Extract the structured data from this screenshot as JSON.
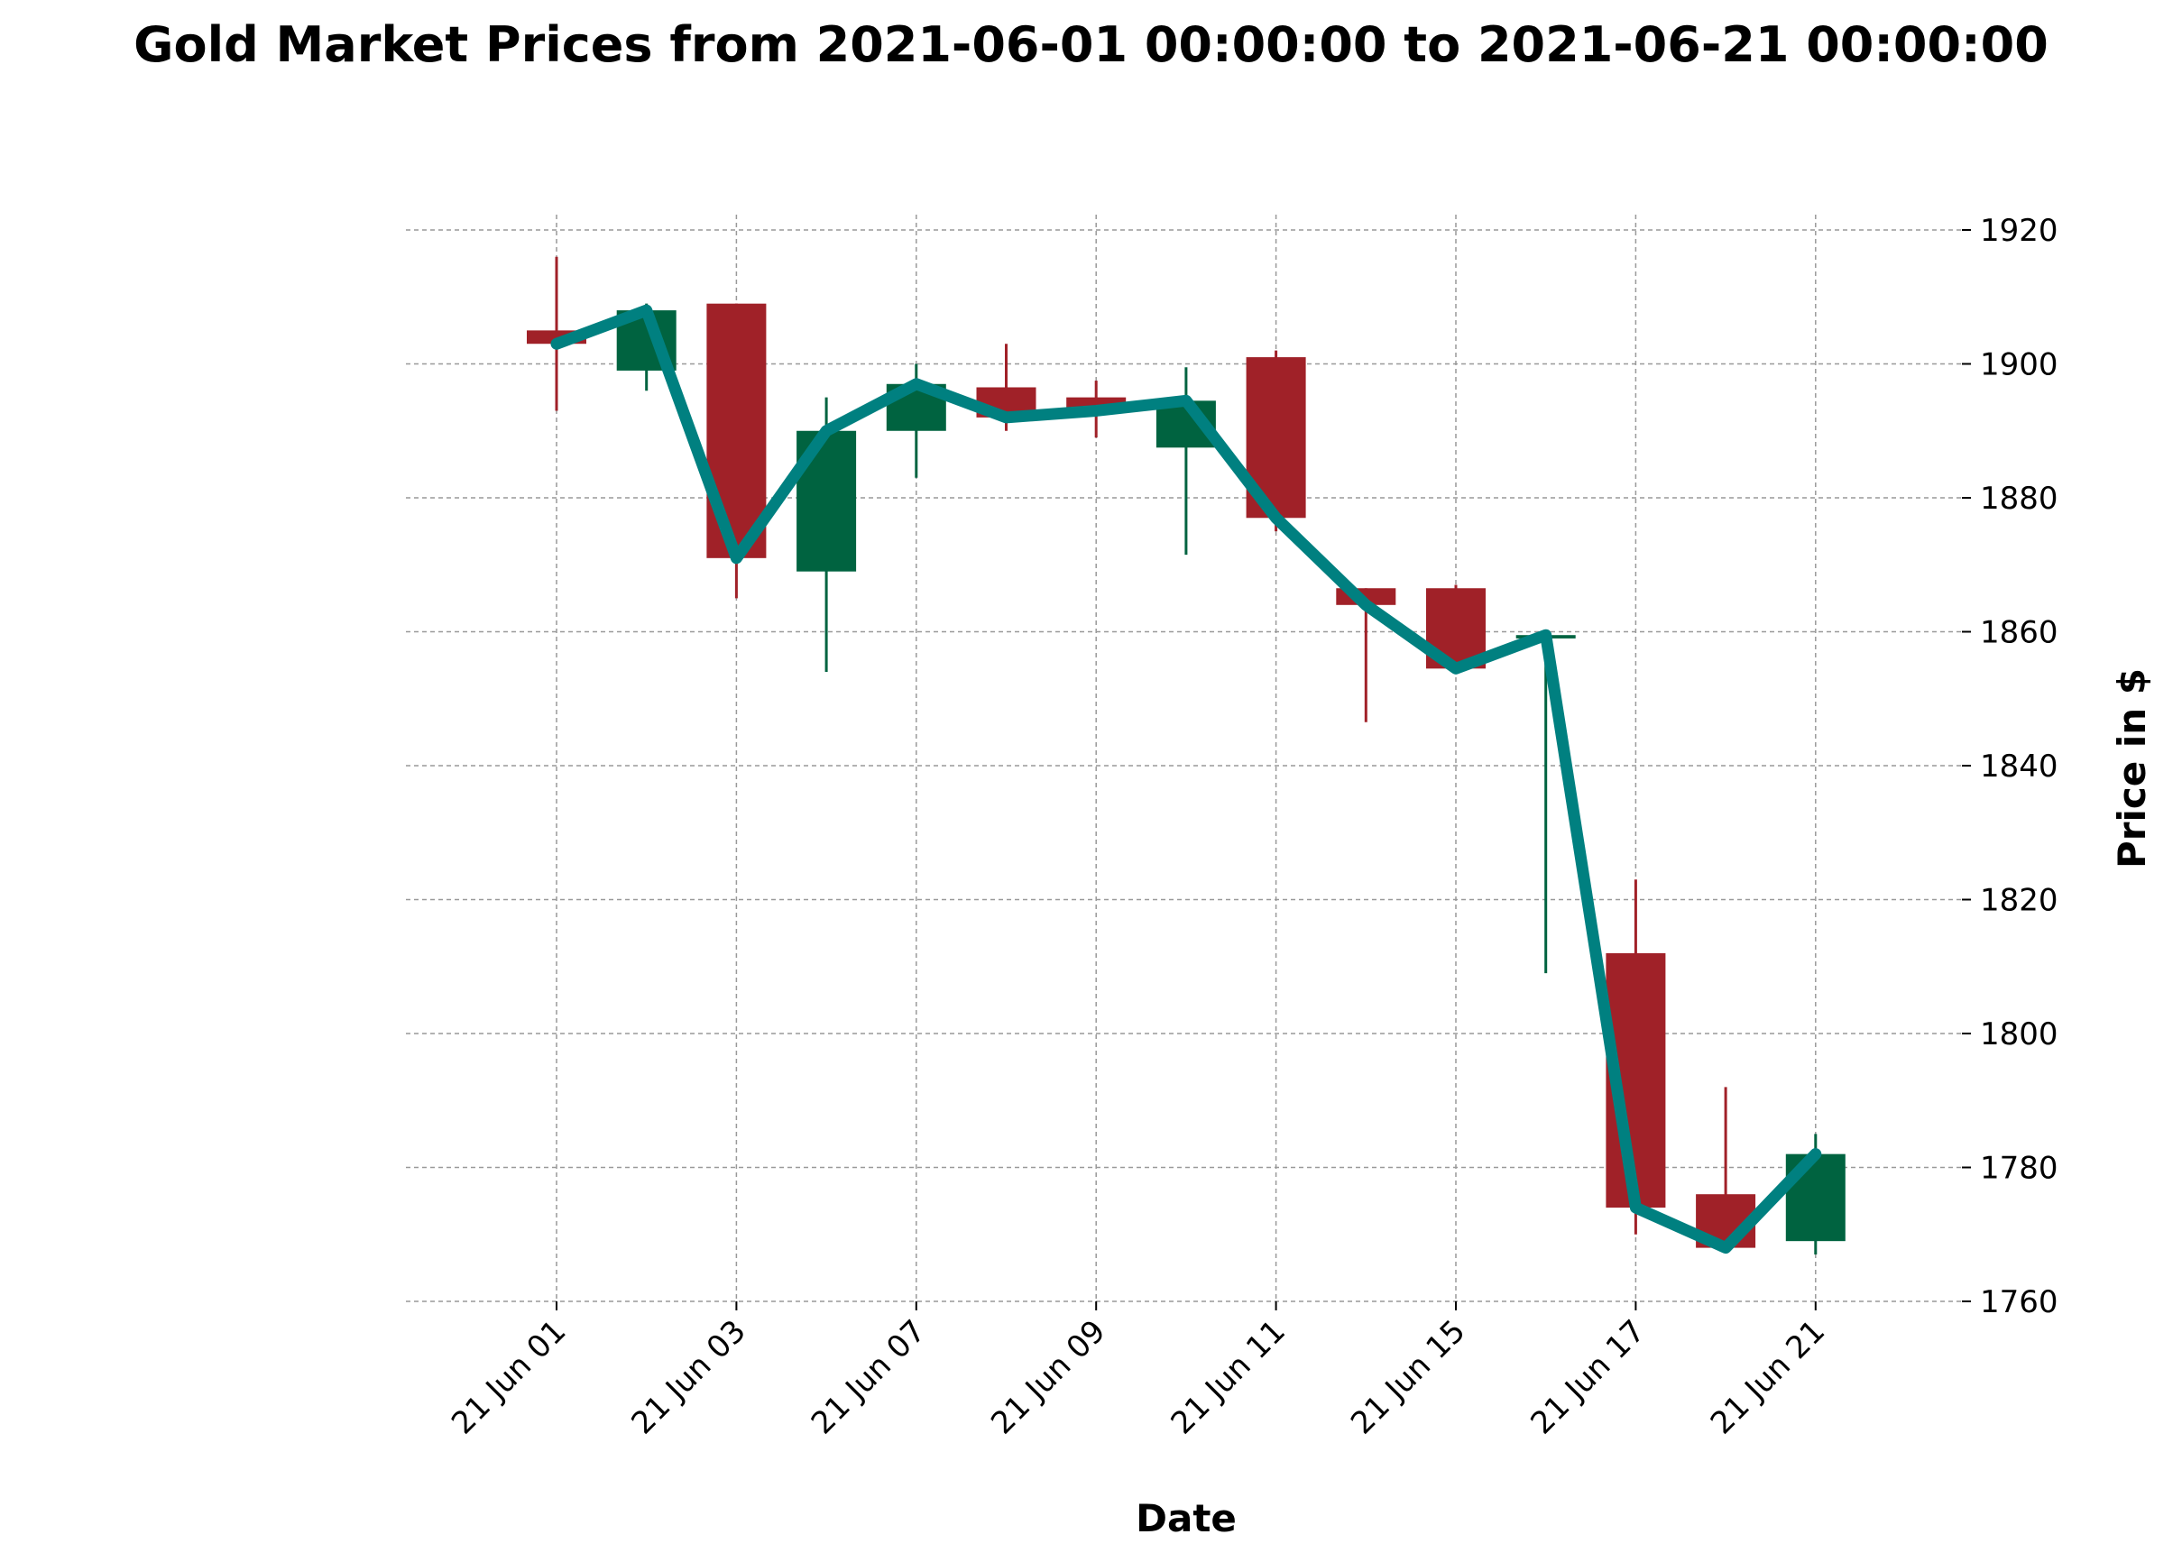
{
  "chart_data": {
    "type": "candlestick",
    "title": "Gold Market Prices from 2021-06-01 00:00:00 to 2021-06-21 00:00:00",
    "xlabel": "Date",
    "ylabel": "Price in $",
    "ylim": [
      1760,
      1925
    ],
    "y_ticks": [
      1760,
      1780,
      1800,
      1820,
      1840,
      1860,
      1880,
      1900,
      1920
    ],
    "x_tick_labels": [
      "21 Jun 01",
      "21 Jun 03",
      "21 Jun 07",
      "21 Jun 09",
      "21 Jun 11",
      "21 Jun 15",
      "21 Jun 17",
      "21 Jun 21"
    ],
    "x_tick_index": [
      0,
      2,
      4,
      6,
      8,
      10,
      12,
      14
    ],
    "grid": true,
    "y_axis_side": "right",
    "candles": [
      {
        "date": "2021-06-01",
        "open": 1905,
        "high": 1916,
        "low": 1893,
        "close": 1903
      },
      {
        "date": "2021-06-02",
        "open": 1899,
        "high": 1909,
        "low": 1896,
        "close": 1908
      },
      {
        "date": "2021-06-03",
        "open": 1909,
        "high": 1909,
        "low": 1865,
        "close": 1871
      },
      {
        "date": "2021-06-04",
        "open": 1869,
        "high": 1895,
        "low": 1854,
        "close": 1890
      },
      {
        "date": "2021-06-07",
        "open": 1890,
        "high": 1900,
        "low": 1883,
        "close": 1897
      },
      {
        "date": "2021-06-08",
        "open": 1896.5,
        "high": 1903,
        "low": 1890,
        "close": 1892
      },
      {
        "date": "2021-06-09",
        "open": 1895,
        "high": 1897.5,
        "low": 1889,
        "close": 1893
      },
      {
        "date": "2021-06-10",
        "open": 1887.5,
        "high": 1899.5,
        "low": 1871.5,
        "close": 1894.5
      },
      {
        "date": "2021-06-11",
        "open": 1901,
        "high": 1902,
        "low": 1875,
        "close": 1877
      },
      {
        "date": "2021-06-14",
        "open": 1866.5,
        "high": 1866.5,
        "low": 1846.5,
        "close": 1864
      },
      {
        "date": "2021-06-15",
        "open": 1866.5,
        "high": 1867,
        "low": 1854,
        "close": 1854.5
      },
      {
        "date": "2021-06-16",
        "open": 1859,
        "high": 1860,
        "low": 1809,
        "close": 1859.5
      },
      {
        "date": "2021-06-17",
        "open": 1812,
        "high": 1823,
        "low": 1770,
        "close": 1774
      },
      {
        "date": "2021-06-18",
        "open": 1776,
        "high": 1792,
        "low": 1767.5,
        "close": 1768
      },
      {
        "date": "2021-06-21",
        "open": 1769,
        "high": 1785,
        "low": 1767,
        "close": 1782
      }
    ],
    "series": [
      {
        "type": "line",
        "values": [
          1903,
          1908,
          1871,
          1890,
          1897,
          1892,
          1893,
          1894.5,
          1877,
          1864,
          1854.5,
          1859.5,
          1774,
          1768,
          1782
        ]
      }
    ],
    "colors": {
      "up": "#006340",
      "down": "#A02128",
      "line": "#008080",
      "grid": "#999999"
    }
  }
}
